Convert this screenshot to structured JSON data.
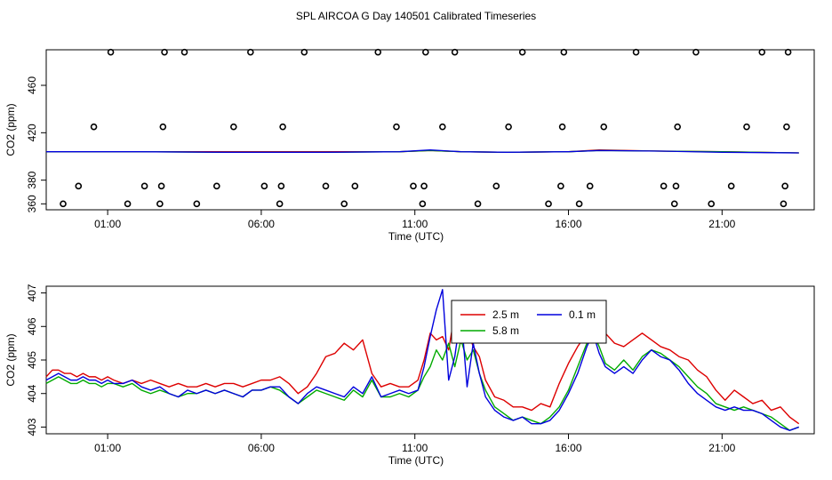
{
  "page_title": "SPL AIRCOA G  Day 140501  Calibrated Timeseries",
  "chart_data": [
    {
      "type": "scatter",
      "xlabel": "Time (UTC)",
      "ylabel": "CO2 (ppm)",
      "x_unit": "hours UTC",
      "xlim": [
        -1.0,
        24.0
      ],
      "ylim": [
        355,
        490
      ],
      "x_tick_values": [
        1,
        6,
        11,
        16,
        21
      ],
      "x_tick_labels": [
        "01:00",
        "06:00",
        "11:00",
        "16:00",
        "21:00"
      ],
      "y_tick_values": [
        360,
        380,
        420,
        460
      ],
      "y_tick_labels": [
        "360",
        "380",
        "420",
        "460"
      ],
      "grid": false,
      "points_hours": [
        -0.45,
        0.05,
        0.55,
        1.1,
        1.65,
        2.2,
        2.7,
        2.75,
        2.8,
        2.85,
        3.5,
        3.9,
        4.55,
        5.1,
        5.65,
        6.1,
        6.6,
        6.65,
        6.7,
        7.4,
        8.1,
        8.7,
        9.05,
        9.8,
        10.4,
        10.95,
        11.25,
        11.3,
        11.35,
        11.9,
        12.3,
        13.05,
        13.65,
        14.05,
        14.5,
        15.35,
        15.75,
        15.8,
        15.85,
        16.35,
        16.7,
        17.15,
        18.2,
        19.1,
        19.45,
        19.5,
        19.55,
        20.15,
        20.65,
        21.3,
        21.8,
        22.3,
        23.0,
        23.05,
        23.1,
        23.15
      ],
      "points_co2": [
        360,
        375,
        425,
        488,
        360,
        375,
        360,
        375,
        425,
        488,
        488,
        360,
        375,
        425,
        488,
        375,
        360,
        375,
        425,
        488,
        375,
        360,
        375,
        488,
        425,
        375,
        360,
        375,
        488,
        425,
        488,
        360,
        375,
        425,
        488,
        360,
        375,
        425,
        488,
        360,
        375,
        425,
        488,
        375,
        360,
        375,
        425,
        488,
        360,
        375,
        425,
        488,
        360,
        375,
        425,
        488
      ],
      "overlay_series": [
        {
          "color": "#dd0000",
          "x": [
            -1,
            2,
            5,
            8,
            10.5,
            11.5,
            12.5,
            14,
            16,
            17,
            19,
            21,
            23.5
          ],
          "y": [
            404,
            404,
            404,
            404,
            404,
            405,
            404,
            403.5,
            404,
            405.5,
            404.5,
            404,
            403
          ]
        },
        {
          "color": "#00aa00",
          "x": [
            -1,
            2,
            5,
            8,
            10.5,
            11.5,
            12.5,
            14,
            16,
            17,
            19,
            21,
            23.5
          ],
          "y": [
            404,
            404,
            403.5,
            403.5,
            404,
            405,
            404,
            403.5,
            404,
            405,
            404.5,
            404,
            403
          ]
        },
        {
          "color": "#0000dd",
          "x": [
            -1,
            2,
            5,
            8,
            10.5,
            11.5,
            12.5,
            14,
            16,
            17,
            19,
            21,
            23.5
          ],
          "y": [
            404,
            404,
            403.5,
            403.5,
            404,
            405.5,
            404,
            403.5,
            404,
            405,
            404.5,
            403.5,
            403
          ]
        }
      ]
    },
    {
      "type": "line",
      "xlabel": "Time (UTC)",
      "ylabel": "CO2 (ppm)",
      "x_unit": "hours UTC",
      "xlim": [
        -1.0,
        24.0
      ],
      "ylim": [
        402.8,
        407.2
      ],
      "x_tick_values": [
        1,
        6,
        11,
        16,
        21
      ],
      "x_tick_labels": [
        "01:00",
        "06:00",
        "11:00",
        "16:00",
        "21:00"
      ],
      "y_tick_values": [
        403,
        404,
        405,
        406,
        407
      ],
      "y_tick_labels": [
        "403",
        "404",
        "405",
        "406",
        "407"
      ],
      "grid": false,
      "legend_position": "top-center",
      "series": [
        {
          "name": "2.5 m",
          "color": "#dd0000",
          "x": [
            -1.0,
            -0.8,
            -0.6,
            -0.4,
            -0.2,
            0.0,
            0.2,
            0.4,
            0.6,
            0.8,
            1.0,
            1.2,
            1.5,
            1.8,
            2.1,
            2.4,
            2.7,
            3.0,
            3.3,
            3.6,
            3.9,
            4.2,
            4.5,
            4.8,
            5.1,
            5.4,
            5.7,
            6.0,
            6.3,
            6.6,
            6.9,
            7.2,
            7.5,
            7.8,
            8.1,
            8.4,
            8.7,
            9.0,
            9.3,
            9.6,
            9.9,
            10.2,
            10.5,
            10.8,
            11.1,
            11.3,
            11.5,
            11.7,
            11.9,
            12.1,
            12.3,
            12.5,
            12.7,
            12.9,
            13.1,
            13.3,
            13.6,
            13.9,
            14.2,
            14.5,
            14.8,
            15.1,
            15.4,
            15.7,
            16.0,
            16.3,
            16.6,
            16.8,
            17.0,
            17.2,
            17.5,
            17.8,
            18.1,
            18.4,
            18.7,
            19.0,
            19.3,
            19.6,
            19.9,
            20.2,
            20.5,
            20.8,
            21.1,
            21.4,
            21.7,
            22.0,
            22.3,
            22.6,
            22.9,
            23.2,
            23.5
          ],
          "y": [
            404.5,
            404.7,
            404.7,
            404.6,
            404.6,
            404.5,
            404.6,
            404.5,
            404.5,
            404.4,
            404.5,
            404.4,
            404.3,
            404.4,
            404.3,
            404.4,
            404.3,
            404.2,
            404.3,
            404.2,
            404.2,
            404.3,
            404.2,
            404.3,
            404.3,
            404.2,
            404.3,
            404.4,
            404.4,
            404.5,
            404.3,
            404.0,
            404.2,
            404.6,
            405.1,
            405.2,
            405.5,
            405.3,
            405.6,
            404.6,
            404.2,
            404.3,
            404.2,
            404.2,
            404.4,
            405.0,
            405.8,
            405.6,
            405.7,
            405.3,
            406.4,
            405.5,
            405.9,
            405.4,
            405.1,
            404.4,
            403.9,
            403.8,
            403.6,
            403.6,
            403.5,
            403.7,
            403.6,
            404.3,
            404.9,
            405.4,
            405.8,
            406.2,
            406.0,
            405.8,
            405.5,
            405.4,
            405.6,
            405.8,
            405.6,
            405.4,
            405.3,
            405.1,
            405.0,
            404.7,
            404.5,
            404.1,
            403.8,
            404.1,
            403.9,
            403.7,
            403.8,
            403.5,
            403.6,
            403.3,
            403.1
          ]
        },
        {
          "name": "5.8 m",
          "color": "#00aa00",
          "x": [
            -1.0,
            -0.8,
            -0.6,
            -0.4,
            -0.2,
            0.0,
            0.2,
            0.4,
            0.6,
            0.8,
            1.0,
            1.2,
            1.5,
            1.8,
            2.1,
            2.4,
            2.7,
            3.0,
            3.3,
            3.6,
            3.9,
            4.2,
            4.5,
            4.8,
            5.1,
            5.4,
            5.7,
            6.0,
            6.3,
            6.6,
            6.9,
            7.2,
            7.5,
            7.8,
            8.1,
            8.4,
            8.7,
            9.0,
            9.3,
            9.6,
            9.9,
            10.2,
            10.5,
            10.8,
            11.1,
            11.3,
            11.5,
            11.7,
            11.9,
            12.1,
            12.3,
            12.5,
            12.7,
            12.9,
            13.1,
            13.3,
            13.6,
            13.9,
            14.2,
            14.5,
            14.8,
            15.1,
            15.4,
            15.7,
            16.0,
            16.3,
            16.6,
            16.8,
            17.0,
            17.2,
            17.5,
            17.8,
            18.1,
            18.4,
            18.7,
            19.0,
            19.3,
            19.6,
            19.9,
            20.2,
            20.5,
            20.8,
            21.1,
            21.4,
            21.7,
            22.0,
            22.3,
            22.6,
            22.9,
            23.2,
            23.5
          ],
          "y": [
            404.3,
            404.4,
            404.5,
            404.4,
            404.3,
            404.3,
            404.4,
            404.3,
            404.3,
            404.2,
            404.3,
            404.3,
            404.2,
            404.3,
            404.1,
            404.0,
            404.1,
            404.0,
            403.9,
            404.0,
            404.0,
            404.1,
            404.0,
            404.1,
            404.0,
            403.9,
            404.1,
            404.1,
            404.2,
            404.1,
            403.9,
            403.7,
            403.9,
            404.1,
            404.0,
            403.9,
            403.8,
            404.1,
            403.9,
            404.4,
            403.9,
            403.9,
            404.0,
            403.9,
            404.1,
            404.5,
            404.8,
            405.3,
            405.0,
            405.5,
            404.8,
            405.6,
            405.0,
            405.3,
            404.6,
            404.1,
            403.6,
            403.4,
            403.2,
            403.3,
            403.2,
            403.1,
            403.3,
            403.6,
            404.1,
            404.8,
            405.5,
            405.8,
            405.4,
            404.9,
            404.7,
            405.0,
            404.7,
            405.1,
            405.3,
            405.2,
            405.0,
            404.8,
            404.5,
            404.2,
            404.0,
            403.7,
            403.6,
            403.5,
            403.6,
            403.5,
            403.4,
            403.3,
            403.1,
            402.9,
            403.0
          ]
        },
        {
          "name": "0.1 m",
          "color": "#0000dd",
          "x": [
            -1.0,
            -0.8,
            -0.6,
            -0.4,
            -0.2,
            0.0,
            0.2,
            0.4,
            0.6,
            0.8,
            1.0,
            1.2,
            1.5,
            1.8,
            2.1,
            2.4,
            2.7,
            3.0,
            3.3,
            3.6,
            3.9,
            4.2,
            4.5,
            4.8,
            5.1,
            5.4,
            5.7,
            6.0,
            6.3,
            6.6,
            6.9,
            7.2,
            7.5,
            7.8,
            8.1,
            8.4,
            8.7,
            9.0,
            9.3,
            9.6,
            9.9,
            10.2,
            10.5,
            10.8,
            11.1,
            11.3,
            11.5,
            11.7,
            11.9,
            12.1,
            12.3,
            12.5,
            12.7,
            12.9,
            13.1,
            13.3,
            13.6,
            13.9,
            14.2,
            14.5,
            14.8,
            15.1,
            15.4,
            15.7,
            16.0,
            16.3,
            16.6,
            16.8,
            17.0,
            17.2,
            17.5,
            17.8,
            18.1,
            18.4,
            18.7,
            19.0,
            19.3,
            19.6,
            19.9,
            20.2,
            20.5,
            20.8,
            21.1,
            21.4,
            21.7,
            22.0,
            22.3,
            22.6,
            22.9,
            23.2,
            23.5
          ],
          "y": [
            404.4,
            404.5,
            404.6,
            404.5,
            404.4,
            404.4,
            404.5,
            404.4,
            404.4,
            404.3,
            404.4,
            404.3,
            404.3,
            404.4,
            404.2,
            404.1,
            404.2,
            404.0,
            403.9,
            404.1,
            404.0,
            404.1,
            404.0,
            404.1,
            404.0,
            403.9,
            404.1,
            404.1,
            404.2,
            404.2,
            403.9,
            403.7,
            404.0,
            404.2,
            404.1,
            404.0,
            403.9,
            404.2,
            404.0,
            404.5,
            403.9,
            404.0,
            404.1,
            404.0,
            404.1,
            404.8,
            405.7,
            406.5,
            407.1,
            404.4,
            405.1,
            406.4,
            404.2,
            405.5,
            404.6,
            403.9,
            403.5,
            403.3,
            403.2,
            403.3,
            403.1,
            403.1,
            403.2,
            403.5,
            404.0,
            404.6,
            405.4,
            405.8,
            405.2,
            404.8,
            404.6,
            404.8,
            404.6,
            405.0,
            405.3,
            405.1,
            405.0,
            404.7,
            404.3,
            404.0,
            403.8,
            403.6,
            403.5,
            403.6,
            403.5,
            403.5,
            403.4,
            403.2,
            403.0,
            402.9,
            403.0
          ]
        }
      ]
    }
  ]
}
